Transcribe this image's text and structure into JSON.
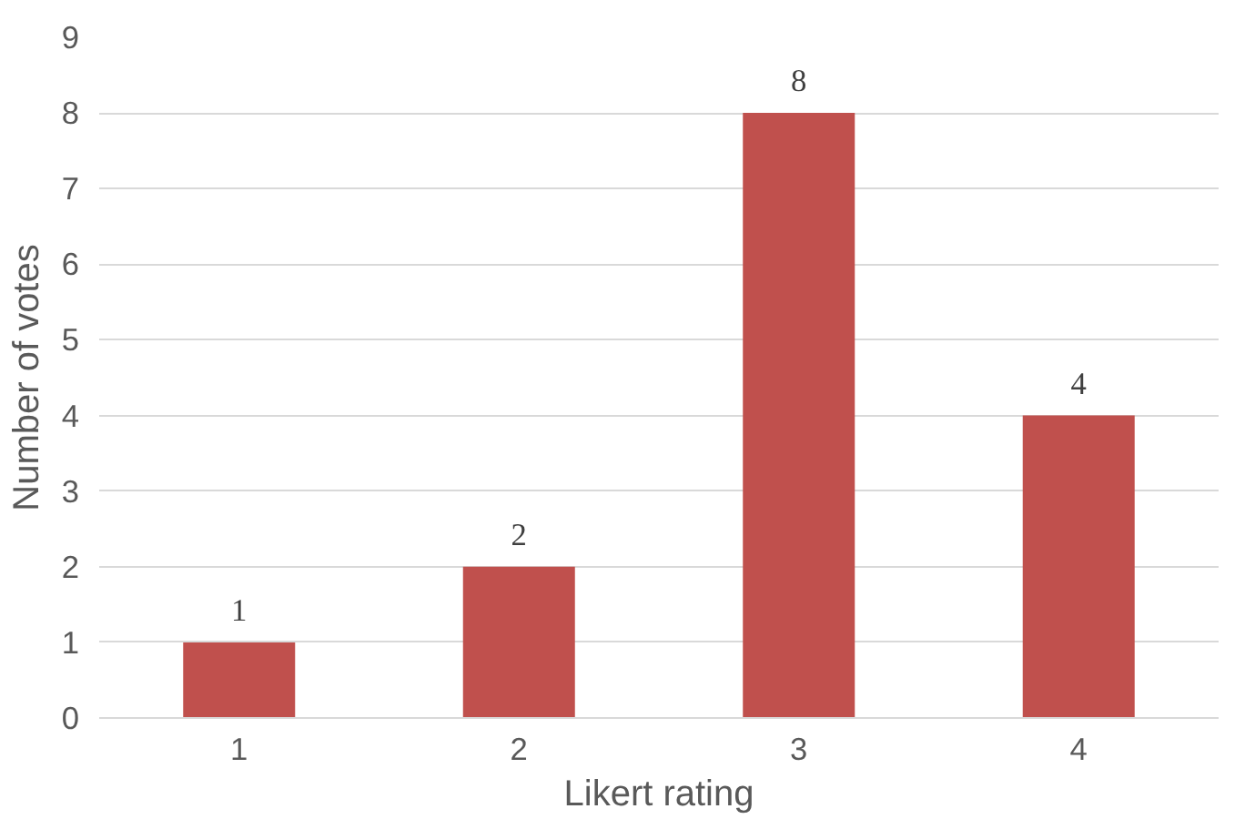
{
  "chart_data": {
    "type": "bar",
    "xlabel": "Likert rating",
    "ylabel": "Number of votes",
    "categories": [
      "1",
      "2",
      "3",
      "4"
    ],
    "values": [
      1,
      2,
      8,
      4
    ],
    "color": "#c0504d",
    "ylim": [
      0,
      9
    ],
    "yticks": [
      0,
      1,
      2,
      3,
      4,
      5,
      6,
      7,
      8,
      9
    ],
    "grid": "y",
    "data_labels": true
  }
}
